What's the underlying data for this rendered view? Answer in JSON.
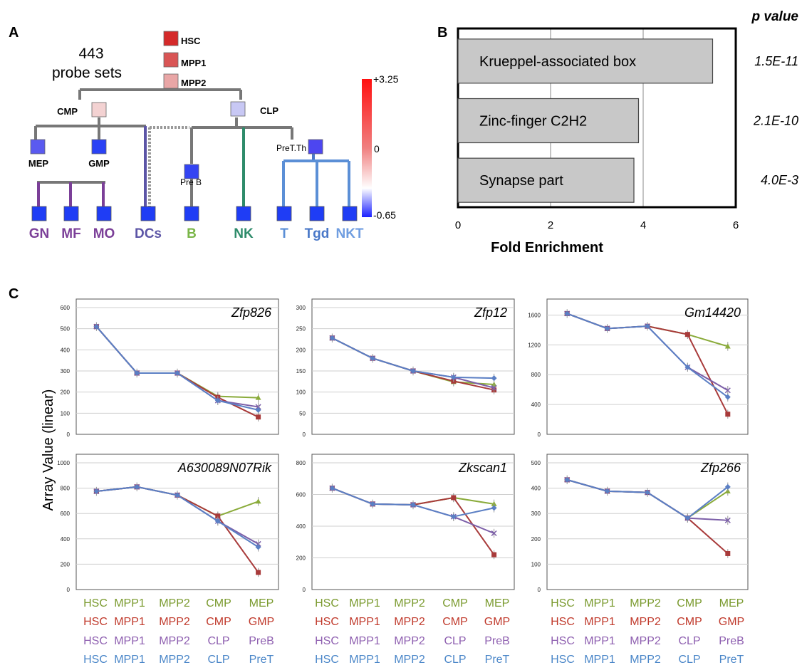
{
  "panels": {
    "a": "A",
    "b": "B",
    "c": "C"
  },
  "tree": {
    "probe_count": "443",
    "probe_label": "probe sets",
    "internal_nodes": [
      {
        "id": "HSC",
        "label": "HSC",
        "color": "#d42a2a"
      },
      {
        "id": "MPP1",
        "label": "MPP1",
        "color": "#d95555"
      },
      {
        "id": "MPP2",
        "label": "MPP2",
        "color": "#e9a6a6"
      },
      {
        "id": "CMP",
        "label": "CMP",
        "color": "#f3d2d2"
      },
      {
        "id": "CLP",
        "label": "CLP",
        "color": "#c8c8f4"
      },
      {
        "id": "MEP",
        "label": "MEP",
        "color": "#5a5af0"
      },
      {
        "id": "GMP",
        "label": "GMP",
        "color": "#2a42f5"
      },
      {
        "id": "PreB",
        "label": "Pre B",
        "color": "#3344f2"
      },
      {
        "id": "PreTTh",
        "label": "PreT.Th",
        "color": "#4d46f0"
      }
    ],
    "leaves": [
      {
        "label": "GN",
        "color": "#7b3f98"
      },
      {
        "label": "MF",
        "color": "#7b3f98"
      },
      {
        "label": "MO",
        "color": "#7b3f98"
      },
      {
        "label": "DCs",
        "color": "#5c55a6"
      },
      {
        "label": "B",
        "color": "#7ab648"
      },
      {
        "label": "NK",
        "color": "#2e8b6a"
      },
      {
        "label": "T",
        "color": "#5b8fd6"
      },
      {
        "label": "Tgd",
        "color": "#4a78c8"
      },
      {
        "label": "NKT",
        "color": "#6f9de0"
      }
    ],
    "leaf_fill": "#1f3df5",
    "scale": {
      "max": "+3.25",
      "mid": "0",
      "min": "-0.65"
    }
  },
  "chart_data": [
    {
      "type": "bar",
      "orientation": "horizontal",
      "categories": [
        "Krueppel-associated box",
        "Zinc-finger C2H2",
        "Synapse part"
      ],
      "values": [
        5.5,
        3.9,
        3.8
      ],
      "p_values": [
        "1.5E-11",
        "2.1E-10",
        "4.0E-3"
      ],
      "p_title": "p value",
      "xlabel": "Fold Enrichment",
      "xlim": [
        0,
        6
      ],
      "xticks": [
        "0",
        "2",
        "4",
        "6"
      ],
      "grid": true
    },
    {
      "type": "line",
      "ylabel": "Array Value (linear)",
      "x": [
        "1",
        "2",
        "3",
        "4",
        "5"
      ],
      "lineage_labels": [
        {
          "color": "#7a9a2e",
          "labels": [
            "HSC",
            "MPP1",
            "MPP2",
            "CMP",
            "MEP"
          ]
        },
        {
          "color": "#c0392b",
          "labels": [
            "HSC",
            "MPP1",
            "MPP2",
            "CMP",
            "GMP"
          ]
        },
        {
          "color": "#8e5fb0",
          "labels": [
            "HSC",
            "MPP1",
            "MPP2",
            "CLP",
            "PreB"
          ]
        },
        {
          "color": "#4a86c8",
          "labels": [
            "HSC",
            "MPP1",
            "MPP2",
            "CLP",
            "PreT"
          ]
        }
      ],
      "series_colors": [
        "#8aab3a",
        "#a83a3a",
        "#7c5fa8",
        "#5b7fc4"
      ],
      "plots": [
        {
          "gene": "Zfp826",
          "ylim": [
            0,
            600
          ],
          "yticks": [
            0,
            100,
            200,
            300,
            400,
            500,
            600
          ],
          "series": [
            [
              510,
              290,
              290,
              180,
              173
            ],
            [
              510,
              290,
              290,
              175,
              82
            ],
            [
              510,
              290,
              290,
              160,
              130
            ],
            [
              510,
              290,
              290,
              160,
              115
            ]
          ]
        },
        {
          "gene": "Zfp12",
          "ylim": [
            0,
            300
          ],
          "yticks": [
            0,
            50,
            100,
            150,
            200,
            250,
            300
          ],
          "series": [
            [
              228,
              180,
              150,
              124,
              118
            ],
            [
              228,
              180,
              150,
              126,
              105
            ],
            [
              228,
              180,
              150,
              135,
              110
            ],
            [
              228,
              180,
              150,
              135,
              133
            ]
          ]
        },
        {
          "gene": "Gm14420",
          "ylim": [
            0,
            1700
          ],
          "yticks": [
            0,
            400,
            800,
            1200,
            1600
          ],
          "series": [
            [
              1620,
              1420,
              1450,
              1340,
              1180
            ],
            [
              1620,
              1420,
              1450,
              1340,
              270
            ],
            [
              1620,
              1420,
              1450,
              900,
              590
            ],
            [
              1620,
              1420,
              1450,
              900,
              500
            ]
          ]
        },
        {
          "gene": "A630089N07Rik",
          "ylim": [
            0,
            1000
          ],
          "yticks": [
            0,
            200,
            400,
            600,
            800,
            1000
          ],
          "series": [
            [
              775,
              810,
              745,
              580,
              695
            ],
            [
              775,
              810,
              745,
              580,
              135
            ],
            [
              775,
              810,
              745,
              540,
              360
            ],
            [
              775,
              810,
              745,
              540,
              335
            ]
          ]
        },
        {
          "gene": "Zkscan1",
          "ylim": [
            0,
            800
          ],
          "yticks": [
            0,
            200,
            400,
            600,
            800
          ],
          "series": [
            [
              640,
              540,
              535,
              580,
              540
            ],
            [
              640,
              540,
              535,
              580,
              220
            ],
            [
              640,
              540,
              535,
              460,
              355
            ],
            [
              640,
              540,
              535,
              460,
              515
            ]
          ]
        },
        {
          "gene": "Zfp266",
          "ylim": [
            0,
            500
          ],
          "yticks": [
            0,
            100,
            200,
            300,
            400,
            500
          ],
          "series": [
            [
              433,
              388,
              383,
              282,
              388
            ],
            [
              433,
              388,
              383,
              282,
              142
            ],
            [
              433,
              388,
              383,
              282,
              273
            ],
            [
              433,
              388,
              383,
              282,
              405
            ]
          ]
        }
      ]
    }
  ]
}
